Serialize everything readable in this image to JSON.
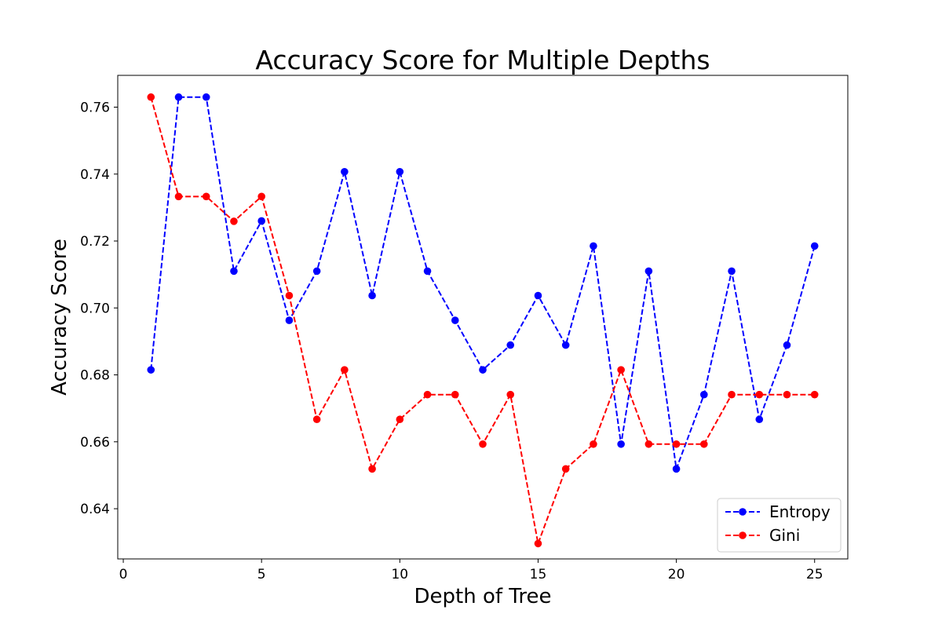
{
  "chart_data": {
    "type": "line",
    "title": "Accuracy Score for Multiple Depths",
    "xlabel": "Depth of Tree",
    "ylabel": "Accuracy Score",
    "xlim": [
      -0.2,
      26.2
    ],
    "ylim": [
      0.625,
      0.7695
    ],
    "xticks": [
      0,
      5,
      10,
      15,
      20,
      25
    ],
    "yticks": [
      0.64,
      0.66,
      0.68,
      0.7,
      0.72,
      0.74,
      0.76
    ],
    "ytick_labels": [
      "0.64",
      "0.66",
      "0.68",
      "0.70",
      "0.72",
      "0.74",
      "0.76"
    ],
    "grid": false,
    "legend_position": "lower-right",
    "x": [
      1,
      2,
      3,
      4,
      5,
      6,
      7,
      8,
      9,
      10,
      11,
      12,
      13,
      14,
      15,
      16,
      17,
      18,
      19,
      20,
      21,
      22,
      23,
      24,
      25
    ],
    "series": [
      {
        "name": "Entropy",
        "color": "#0000ff",
        "linestyle": "dashed",
        "marker": "circle",
        "values": [
          0.6815,
          0.763,
          0.763,
          0.711,
          0.726,
          0.6963,
          0.711,
          0.7407,
          0.7037,
          0.7407,
          0.711,
          0.6963,
          0.6815,
          0.6889,
          0.7037,
          0.6889,
          0.7185,
          0.6593,
          0.711,
          0.6519,
          0.6741,
          0.711,
          0.6667,
          0.6889,
          0.7185
        ]
      },
      {
        "name": "Gini",
        "color": "#ff0000",
        "linestyle": "dashed",
        "marker": "circle",
        "values": [
          0.763,
          0.7333,
          0.7333,
          0.7259,
          0.7333,
          0.7037,
          0.6667,
          0.6815,
          0.6519,
          0.6667,
          0.6741,
          0.6741,
          0.6593,
          0.6741,
          0.6296,
          0.6519,
          0.6593,
          0.6815,
          0.6593,
          0.6593,
          0.6593,
          0.6741,
          0.6741,
          0.6741,
          0.6741
        ]
      }
    ]
  }
}
